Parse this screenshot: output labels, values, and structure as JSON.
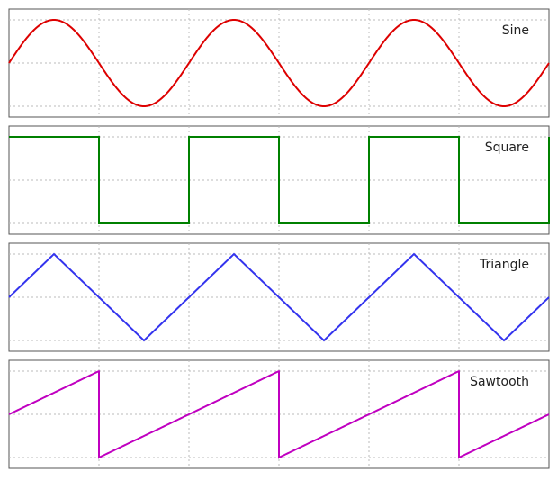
{
  "chart_data": [
    {
      "type": "line",
      "legend": "Sine",
      "waveform": "sine",
      "color": "#dd0000",
      "x_range": [
        0,
        6
      ],
      "ylim": [
        -1.0,
        1.0
      ],
      "period": 2,
      "amplitude": 0.8,
      "grid": true,
      "legend_position": "top-right"
    },
    {
      "type": "line",
      "legend": "Square",
      "waveform": "square",
      "color": "#008000",
      "x_range": [
        0,
        6
      ],
      "ylim": [
        -1.0,
        1.0
      ],
      "period": 2,
      "amplitude": 0.8,
      "grid": true,
      "legend_position": "top-right"
    },
    {
      "type": "line",
      "legend": "Triangle",
      "waveform": "triangle",
      "color": "#3333ee",
      "x_range": [
        0,
        6
      ],
      "ylim": [
        -1.0,
        1.0
      ],
      "period": 2,
      "amplitude": 0.8,
      "grid": true,
      "legend_position": "top-right"
    },
    {
      "type": "line",
      "legend": "Sawtooth",
      "waveform": "sawtooth",
      "color": "#c000c0",
      "x_range": [
        0,
        6
      ],
      "ylim": [
        -1.0,
        1.0
      ],
      "period": 2,
      "amplitude": 0.8,
      "grid": true,
      "legend_position": "top-right"
    }
  ]
}
